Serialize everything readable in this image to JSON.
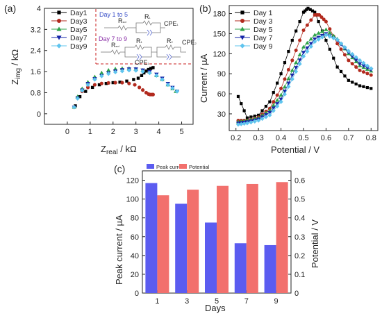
{
  "chart_data": [
    {
      "panel_label": "(a)",
      "type": "scatter",
      "xlabel_main": "Z",
      "xlabel_sub": "real",
      "xlabel_unit": " / kΩ",
      "ylabel_main": "Z",
      "ylabel_sub": "img",
      "ylabel_unit": " / kΩ",
      "xlim": [
        -1,
        5.5
      ],
      "ylim": [
        -0.4,
        4.0
      ],
      "xticks": [
        "0",
        "1",
        "2",
        "3",
        "4",
        "5"
      ],
      "yticks": [
        "0",
        "0.8",
        "1.6",
        "2.4",
        "3.2",
        "4"
      ],
      "ytick_values": [
        0,
        0.8,
        1.6,
        2.4,
        3.2,
        4
      ],
      "inset": {
        "label_days_1_5": "Day 1 to 5",
        "label_days_7_9": "Day 7 to 9",
        "r_s": "R",
        "r_s_sub": "sol",
        "r_1": "R",
        "r_1_sub": "1",
        "r_2": "R",
        "r_2_sub": "2",
        "cpe": "CPE",
        "cpe_1_sub": "1",
        "cpe_2_sub": "2"
      },
      "series": [
        {
          "name": "Day1",
          "color": "#000000",
          "marker": "square",
          "x": [
            0.35,
            0.55,
            0.8,
            1.1,
            1.4,
            1.7,
            2.0,
            2.3,
            2.6,
            2.9,
            3.1,
            3.25,
            3.35,
            3.45,
            3.55,
            3.65,
            3.75
          ],
          "y": [
            0.3,
            0.65,
            0.85,
            1.0,
            1.1,
            1.15,
            1.18,
            1.2,
            1.24,
            1.3,
            1.35,
            1.45,
            1.55,
            1.62,
            1.68,
            1.72,
            1.75
          ]
        },
        {
          "name": "Day3",
          "color": "#b22a1e",
          "marker": "circle",
          "x": [
            0.3,
            0.45,
            0.65,
            0.9,
            1.2,
            1.5,
            1.8,
            2.1,
            2.4,
            2.7,
            2.95,
            3.15,
            3.3,
            3.45,
            3.55,
            3.62,
            3.7,
            3.75
          ],
          "y": [
            0.25,
            0.6,
            0.85,
            1.0,
            1.1,
            1.15,
            1.17,
            1.18,
            1.18,
            1.15,
            1.1,
            1.0,
            0.9,
            0.8,
            0.75,
            0.73,
            0.73,
            0.73
          ]
        },
        {
          "name": "Day5",
          "color": "#2ea34a",
          "marker": "triangle-up",
          "x": [
            0.3,
            0.45,
            0.65,
            0.9,
            1.2,
            1.5,
            1.8,
            2.1,
            2.4,
            2.7,
            3.0,
            3.3,
            3.6,
            3.9,
            4.15,
            4.4,
            4.6,
            4.75
          ],
          "y": [
            0.25,
            0.65,
            0.95,
            1.2,
            1.4,
            1.55,
            1.65,
            1.7,
            1.72,
            1.72,
            1.7,
            1.65,
            1.58,
            1.45,
            1.3,
            1.1,
            0.95,
            0.85
          ]
        },
        {
          "name": "Day7",
          "color": "#1525a8",
          "marker": "triangle-down",
          "x": [
            0.3,
            0.45,
            0.65,
            0.9,
            1.2,
            1.5,
            1.8,
            2.1,
            2.4,
            2.7,
            3.0,
            3.3,
            3.6,
            3.9,
            4.15,
            4.4,
            4.6,
            4.8
          ],
          "y": [
            0.25,
            0.6,
            0.9,
            1.15,
            1.33,
            1.45,
            1.55,
            1.62,
            1.67,
            1.7,
            1.7,
            1.66,
            1.6,
            1.5,
            1.35,
            1.15,
            1.0,
            0.85
          ]
        },
        {
          "name": "Day9",
          "color": "#5fc4ee",
          "marker": "diamond",
          "x": [
            0.3,
            0.45,
            0.65,
            0.9,
            1.2,
            1.5,
            1.8,
            2.1,
            2.4,
            2.7,
            3.0,
            3.3,
            3.6,
            3.9,
            4.15,
            4.4,
            4.6,
            4.8
          ],
          "y": [
            0.25,
            0.58,
            0.88,
            1.1,
            1.3,
            1.43,
            1.52,
            1.58,
            1.62,
            1.65,
            1.64,
            1.6,
            1.55,
            1.45,
            1.3,
            1.1,
            0.97,
            0.85
          ]
        }
      ]
    },
    {
      "panel_label": "(b)",
      "type": "line",
      "xlabel": "Potential / V",
      "ylabel": "Current / µA",
      "xlim": [
        0.17,
        0.83
      ],
      "ylim": [
        5,
        192
      ],
      "xticks": [
        "0.2",
        "0.3",
        "0.4",
        "0.5",
        "0.6",
        "0.7",
        "0.8"
      ],
      "xtick_values": [
        0.2,
        0.3,
        0.4,
        0.5,
        0.6,
        0.7,
        0.8
      ],
      "yticks": [
        "30",
        "60",
        "90",
        "120",
        "150",
        "180"
      ],
      "ytick_values": [
        30,
        60,
        90,
        120,
        150,
        180
      ],
      "series": [
        {
          "name": "Day 1",
          "color": "#000000",
          "marker": "square",
          "x": [
            0.21,
            0.25,
            0.3,
            0.35,
            0.4,
            0.45,
            0.5,
            0.52,
            0.55,
            0.6,
            0.65,
            0.7,
            0.75,
            0.8
          ],
          "y": [
            56,
            24,
            28,
            48,
            90,
            140,
            182,
            188,
            182,
            140,
            100,
            80,
            72,
            68
          ]
        },
        {
          "name": "Day 3",
          "color": "#b22a1e",
          "marker": "circle",
          "x": [
            0.21,
            0.25,
            0.3,
            0.35,
            0.4,
            0.45,
            0.5,
            0.55,
            0.57,
            0.6,
            0.65,
            0.7,
            0.75,
            0.8
          ],
          "y": [
            20,
            20,
            25,
            38,
            68,
            110,
            155,
            178,
            178,
            168,
            135,
            110,
            95,
            88
          ]
        },
        {
          "name": "Day 5",
          "color": "#2ea34a",
          "marker": "triangle-up",
          "x": [
            0.21,
            0.25,
            0.3,
            0.35,
            0.4,
            0.45,
            0.5,
            0.55,
            0.6,
            0.65,
            0.7,
            0.75,
            0.8
          ],
          "y": [
            18,
            20,
            24,
            35,
            58,
            95,
            130,
            148,
            156,
            142,
            120,
            102,
            94
          ]
        },
        {
          "name": "Day 7",
          "color": "#1525a8",
          "marker": "triangle-down",
          "x": [
            0.21,
            0.25,
            0.3,
            0.35,
            0.4,
            0.45,
            0.5,
            0.55,
            0.6,
            0.65,
            0.7,
            0.75,
            0.8
          ],
          "y": [
            16,
            18,
            22,
            32,
            52,
            88,
            122,
            142,
            150,
            140,
            122,
            105,
            96
          ]
        },
        {
          "name": "Day 9",
          "color": "#5fc4ee",
          "marker": "diamond",
          "x": [
            0.21,
            0.25,
            0.3,
            0.35,
            0.4,
            0.45,
            0.5,
            0.55,
            0.6,
            0.65,
            0.7,
            0.75,
            0.8
          ],
          "y": [
            14,
            16,
            20,
            28,
            48,
            82,
            116,
            138,
            148,
            141,
            124,
            110,
            98
          ]
        }
      ]
    },
    {
      "panel_label": "(c)",
      "type": "bar",
      "xlabel": "Days",
      "ylabel_left": "Peak current / µA",
      "ylabel_right": "Potential / V",
      "categories": [
        "1",
        "3",
        "5",
        "7",
        "9"
      ],
      "ylim_left": [
        0,
        130
      ],
      "ylim_right": [
        0,
        0.65
      ],
      "yticks_left": [
        "0",
        "20",
        "40",
        "60",
        "80",
        "100",
        "120"
      ],
      "yticks_left_values": [
        0,
        20,
        40,
        60,
        80,
        100,
        120
      ],
      "yticks_right": [
        "0",
        "0.1",
        "0.2",
        "0.3",
        "0.4",
        "0.5",
        "0.6"
      ],
      "yticks_right_values": [
        0,
        0.1,
        0.2,
        0.3,
        0.4,
        0.5,
        0.6
      ],
      "series": [
        {
          "name": "Peak current",
          "color": "#5b5cf0",
          "axis": "left",
          "values": [
            117,
            95,
            75,
            53,
            51
          ]
        },
        {
          "name": "Potential",
          "color": "#f2706d",
          "axis": "right",
          "values": [
            0.52,
            0.55,
            0.57,
            0.58,
            0.59
          ]
        }
      ]
    }
  ]
}
